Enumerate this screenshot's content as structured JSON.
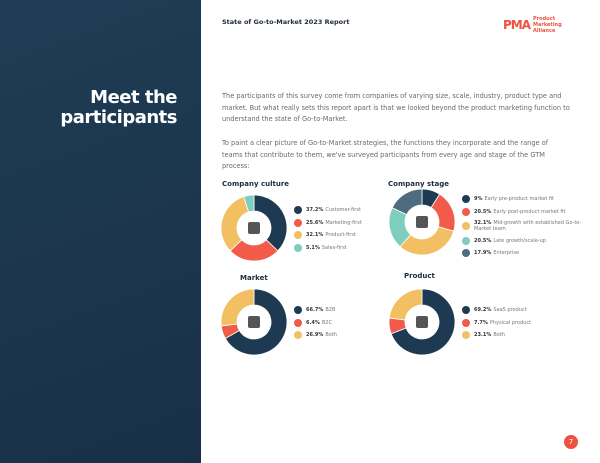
{
  "header": {
    "report_title": "State of Go-to-Market 2023 Report",
    "logo_mark": "PMA",
    "logo_text": "Product Marketing Alliance"
  },
  "sidebar": {
    "heading_line1": "Meet the",
    "heading_line2": "participants"
  },
  "intro": {
    "p1": "The participants of this survey come from companies of varying size, scale, industry, product type and market. But what really sets this report apart is that we looked beyond the product marketing function to understand the state of Go-to-Market.",
    "p2": "To paint a clear picture of Go-to-Market strategies, the functions they incorporate and the range of teams that contribute to them, we've surveyed participants from every age and stage of the GTM process:"
  },
  "colors": {
    "navy": "#1d3a52",
    "red": "#f25a4a",
    "yellow": "#f2c063",
    "teal": "#7ecdbd",
    "slate": "#4f6b80",
    "accent": "#f0503e"
  },
  "chart_data": [
    {
      "type": "pie",
      "title": "Company culture",
      "icon": "people-gear-icon",
      "categories": [
        "Customer-first",
        "Marketing-first",
        "Product-first",
        "Sales-first"
      ],
      "values": [
        37.2,
        25.6,
        32.1,
        5.1
      ],
      "colors": [
        "#1d3a52",
        "#f25a4a",
        "#f2c063",
        "#7ecdbd"
      ],
      "labels": [
        "37.2%",
        "25.6%",
        "32.1%",
        "5.1%"
      ]
    },
    {
      "type": "pie",
      "title": "Company stage",
      "icon": "monitor-chart-icon",
      "categories": [
        "Early pre-product market fit",
        "Early post-product market fit",
        "Mid-growth with established Go-to-Market team",
        "Late growth/scale-up",
        "Enterprise"
      ],
      "values": [
        9,
        20.5,
        32.1,
        20.5,
        17.9
      ],
      "colors": [
        "#1d3a52",
        "#f25a4a",
        "#f2c063",
        "#7ecdbd",
        "#4f6b80"
      ],
      "labels": [
        "9%",
        "20.5%",
        "32.1%",
        "20.5%",
        "17.9%"
      ]
    },
    {
      "type": "pie",
      "title": "Market",
      "icon": "factory-icon",
      "categories": [
        "B2B",
        "B2C",
        "Both"
      ],
      "values": [
        66.7,
        6.4,
        26.9
      ],
      "colors": [
        "#1d3a52",
        "#f25a4a",
        "#f2c063"
      ],
      "labels": [
        "66.7%",
        "6.4%",
        "26.9%"
      ]
    },
    {
      "type": "pie",
      "title": "Product",
      "icon": "grid-icon",
      "categories": [
        "SaaS product",
        "Physical product",
        "Both"
      ],
      "values": [
        69.2,
        7.7,
        23.1
      ],
      "colors": [
        "#1d3a52",
        "#f25a4a",
        "#f2c063"
      ],
      "labels": [
        "69.2%",
        "7.7%",
        "23.1%"
      ]
    }
  ],
  "footer": {
    "page_number": "7"
  }
}
